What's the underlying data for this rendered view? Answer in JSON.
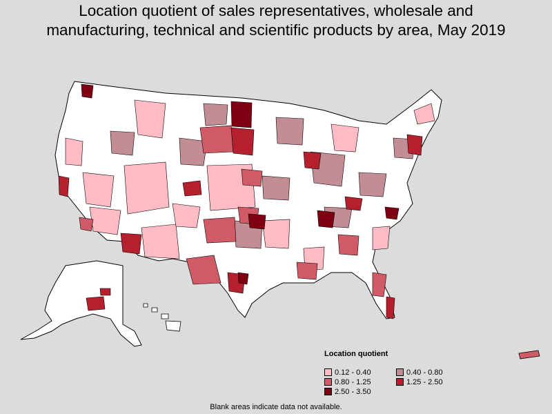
{
  "title_line1": "Location quotient of sales representatives, wholesale and",
  "title_line2": "manufacturing, technical and scientific products by area, May 2019",
  "legend": {
    "title": "Location quotient",
    "items": [
      {
        "label": "0.12 - 0.40",
        "color": "#ffbcc5"
      },
      {
        "label": "0.40 - 0.80",
        "color": "#c38d96"
      },
      {
        "label": "0.80 - 1.25",
        "color": "#d05a66"
      },
      {
        "label": "1.25 - 2.50",
        "color": "#b5202f"
      },
      {
        "label": "2.50 - 3.50",
        "color": "#7f0010"
      }
    ]
  },
  "footnote": "Blank areas indicate data not available.",
  "colors": {
    "background": "#dcdcdc",
    "no_data": "#ffffff",
    "border": "#000000"
  }
}
